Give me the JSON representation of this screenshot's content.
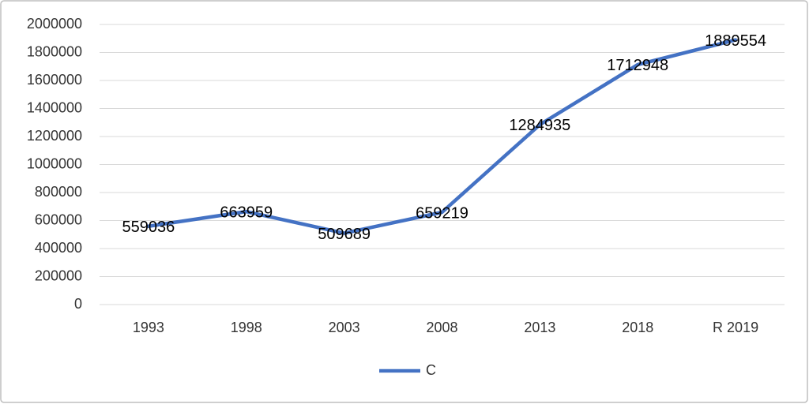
{
  "chart_data": {
    "type": "line",
    "categories": [
      "1993",
      "1998",
      "2003",
      "2008",
      "2013",
      "2018",
      "R 2019"
    ],
    "series": [
      {
        "name": "C",
        "color": "#4472c4",
        "values": [
          559036,
          663959,
          509689,
          659219,
          1284935,
          1712948,
          1889554
        ]
      }
    ],
    "ylim": [
      0,
      2000000
    ],
    "yticks": [
      0,
      200000,
      400000,
      600000,
      800000,
      1000000,
      1200000,
      1400000,
      1600000,
      1800000,
      2000000
    ],
    "grid": true,
    "legend": "bottom",
    "data_labels": true
  }
}
